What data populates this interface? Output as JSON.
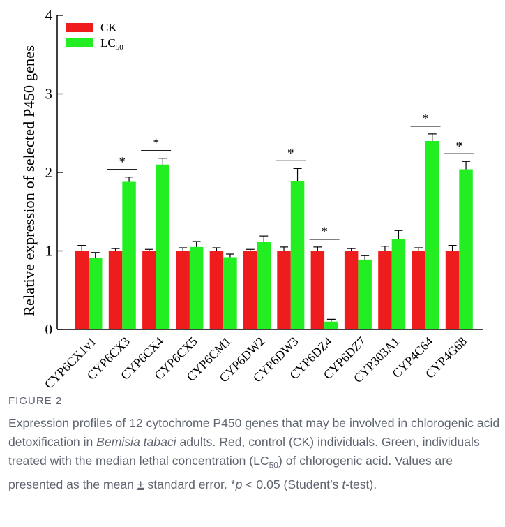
{
  "chart_data": {
    "type": "bar",
    "title": "",
    "xlabel": "",
    "ylabel": "Relative expression of selected P450 genes",
    "ylim": [
      0,
      4
    ],
    "yticks": [
      "0",
      "1",
      "2",
      "3",
      "4"
    ],
    "grid": false,
    "legend_position": "top-left",
    "categories": [
      "CYP6CX1v1",
      "CYP6CX3",
      "CYP6CX4",
      "CYP6CX5",
      "CYP6CM1",
      "CYP6DW2",
      "CYP6DW3",
      "CYP6DZ4",
      "CYP6DZ7",
      "CYP303A1",
      "CYP4C64",
      "CYP4G68"
    ],
    "series": [
      {
        "name": "CK",
        "color": "#ee1c1c",
        "values": [
          1.0,
          1.0,
          1.0,
          1.0,
          1.0,
          1.0,
          1.0,
          1.0,
          1.0,
          1.0,
          1.0,
          1.0
        ],
        "errors": [
          0.07,
          0.03,
          0.02,
          0.04,
          0.04,
          0.02,
          0.05,
          0.05,
          0.03,
          0.06,
          0.04,
          0.07
        ]
      },
      {
        "name_parts": [
          "LC",
          "50"
        ],
        "color": "#22ee22",
        "values": [
          0.91,
          1.88,
          2.1,
          1.05,
          0.92,
          1.12,
          1.89,
          0.1,
          0.89,
          1.15,
          2.4,
          2.04
        ],
        "errors": [
          0.07,
          0.06,
          0.08,
          0.07,
          0.04,
          0.07,
          0.16,
          0.03,
          0.05,
          0.11,
          0.09,
          0.1
        ]
      }
    ],
    "significance_marker": "*",
    "significant": [
      false,
      true,
      true,
      false,
      false,
      false,
      true,
      true,
      false,
      false,
      true,
      true
    ]
  },
  "caption": {
    "label": "FIGURE 2",
    "text_parts": [
      {
        "text": "Expression profiles of 12 cytochrome P450 genes that may be involved in chlorogenic acid detoxification in "
      },
      {
        "text": "Bemisia tabaci",
        "italic": true
      },
      {
        "text": " adults. Red, control (CK) individuals. Green, individuals treated with the median lethal concentration (LC"
      },
      {
        "text": "50",
        "sub": true
      },
      {
        "text": ") of chlorogenic acid. Values are presented as the mean "
      },
      {
        "text": "±",
        "underline": true
      },
      {
        "text": " standard error. *"
      },
      {
        "text": "p",
        "italic": true
      },
      {
        "text": " < 0.05 (Student’s "
      },
      {
        "text": "t",
        "italic": true
      },
      {
        "text": "-test)."
      }
    ]
  }
}
